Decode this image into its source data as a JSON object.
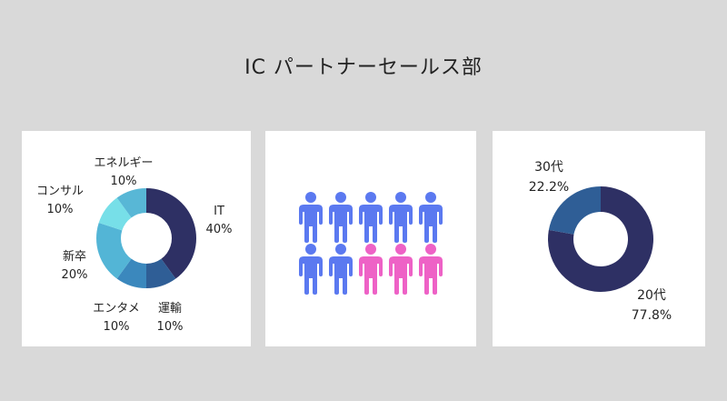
{
  "page_title": "IC パートナーセールス部",
  "chart_data": [
    {
      "type": "pie",
      "variant": "donut",
      "title": "",
      "slices": [
        {
          "label": "IT",
          "value": 40,
          "value_label": "40%",
          "color": "#2e3064"
        },
        {
          "label": "運輸",
          "value": 10,
          "value_label": "10%",
          "color": "#2f5e96"
        },
        {
          "label": "エンタメ",
          "value": 10,
          "value_label": "10%",
          "color": "#3b88bd"
        },
        {
          "label": "新卒",
          "value": 20,
          "value_label": "20%",
          "color": "#53b5d6"
        },
        {
          "label": "コンサル",
          "value": 10,
          "value_label": "10%",
          "color": "#77dfe8"
        },
        {
          "label": "エネルギー",
          "value": 10,
          "value_label": "10%",
          "color": "#58b7d6"
        }
      ]
    },
    {
      "type": "pictograph",
      "title": "",
      "total": 10,
      "groups": [
        {
          "count": 7,
          "color": "#5b79f0"
        },
        {
          "count": 3,
          "color": "#ee62c6"
        }
      ]
    },
    {
      "type": "pie",
      "variant": "donut",
      "title": "",
      "slices": [
        {
          "label": "20代",
          "value": 77.8,
          "value_label": "77.8%",
          "color": "#2e3064"
        },
        {
          "label": "30代",
          "value": 22.2,
          "value_label": "22.2%",
          "color": "#2f5e96"
        }
      ]
    }
  ]
}
